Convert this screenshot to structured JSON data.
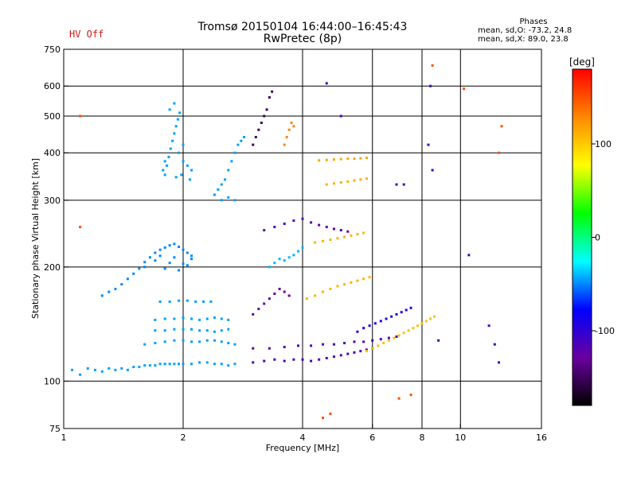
{
  "status": {
    "hv": "HV Off"
  },
  "phases_box": {
    "header": "Phases",
    "o_line": "mean, sd,O: -73.2, 24.8",
    "x_line": "mean, sd,X: 89.0, 23.8"
  },
  "chart_data": {
    "type": "scatter",
    "title": "Tromsø 20150104 16:44:00–16:45:43",
    "subtitle": "RwPretec (8p)",
    "xlabel": "Frequency [MHz]",
    "ylabel": "Stationary phase Virtual Height [km]",
    "x_scale": "log",
    "y_scale": "log",
    "xlim": [
      1,
      16
    ],
    "ylim": [
      75,
      750
    ],
    "x_ticks": [
      1,
      2,
      4,
      6,
      8,
      10,
      16
    ],
    "x_tick_labels": [
      "1",
      "2",
      "4",
      "6",
      "8",
      "10",
      "16"
    ],
    "y_ticks": [
      75,
      100,
      200,
      300,
      400,
      500,
      600,
      750
    ],
    "y_tick_labels": [
      "75",
      "100",
      "200",
      "300",
      "400",
      "500",
      "600",
      "750"
    ],
    "grid_x": [
      2,
      4,
      6,
      8,
      10
    ],
    "grid_y": [
      100,
      200,
      300,
      400,
      500,
      600
    ],
    "grid": true,
    "colorbar": {
      "label": "[deg]",
      "range": [
        -180,
        180
      ],
      "ticks": [
        100,
        0,
        -100
      ],
      "tick_labels": [
        "100",
        "0",
        "-100"
      ],
      "colors": [
        "#ff0000",
        "#ff8800",
        "#ffff00",
        "#00ff00",
        "#00ffff",
        "#0000ff",
        "#6a00a0",
        "#000000"
      ]
    },
    "series": [
      {
        "phase": -45,
        "points": [
          [
            1.05,
            107
          ],
          [
            1.1,
            104
          ],
          [
            1.15,
            108
          ],
          [
            1.2,
            107
          ],
          [
            1.25,
            106
          ],
          [
            1.3,
            108
          ],
          [
            1.35,
            107
          ],
          [
            1.4,
            108
          ],
          [
            1.45,
            107
          ],
          [
            1.5,
            109
          ],
          [
            1.55,
            109
          ],
          [
            1.6,
            110
          ],
          [
            1.65,
            110
          ],
          [
            1.7,
            110
          ],
          [
            1.75,
            111
          ],
          [
            1.8,
            111
          ],
          [
            1.85,
            111
          ],
          [
            1.9,
            111
          ],
          [
            1.95,
            111
          ],
          [
            2.0,
            111
          ],
          [
            2.1,
            111
          ],
          [
            2.2,
            112
          ],
          [
            2.3,
            112
          ],
          [
            2.4,
            111
          ],
          [
            2.5,
            111
          ],
          [
            2.6,
            110
          ],
          [
            2.7,
            111
          ]
        ]
      },
      {
        "phase": -50,
        "points": [
          [
            1.25,
            168
          ],
          [
            1.3,
            172
          ],
          [
            1.35,
            175
          ],
          [
            1.4,
            180
          ],
          [
            1.45,
            186
          ],
          [
            1.5,
            192
          ],
          [
            1.55,
            198
          ],
          [
            1.6,
            206
          ],
          [
            1.65,
            212
          ],
          [
            1.7,
            218
          ],
          [
            1.75,
            222
          ],
          [
            1.8,
            225
          ],
          [
            1.85,
            228
          ],
          [
            1.9,
            230
          ],
          [
            1.95,
            226
          ],
          [
            2.0,
            222
          ],
          [
            2.05,
            218
          ],
          [
            2.1,
            214
          ]
        ]
      },
      {
        "phase": -50,
        "points": [
          [
            1.6,
            200
          ],
          [
            1.7,
            208
          ],
          [
            1.8,
            198
          ],
          [
            1.9,
            212
          ],
          [
            2.0,
            204
          ],
          [
            2.1,
            210
          ],
          [
            1.75,
            214
          ],
          [
            1.85,
            205
          ],
          [
            1.95,
            196
          ],
          [
            2.05,
            202
          ]
        ]
      },
      {
        "phase": -45,
        "points": [
          [
            1.75,
            162
          ],
          [
            1.85,
            162
          ],
          [
            1.95,
            163
          ],
          [
            2.05,
            163
          ],
          [
            2.15,
            162
          ],
          [
            2.25,
            162
          ],
          [
            2.35,
            162
          ]
        ]
      },
      {
        "phase": -45,
        "points": [
          [
            1.7,
            145
          ],
          [
            1.8,
            146
          ],
          [
            1.9,
            146
          ],
          [
            2.0,
            147
          ],
          [
            2.1,
            146
          ],
          [
            2.2,
            145
          ],
          [
            2.3,
            146
          ],
          [
            2.4,
            147
          ],
          [
            2.5,
            146
          ],
          [
            2.6,
            145
          ]
        ]
      },
      {
        "phase": -45,
        "points": [
          [
            1.7,
            136
          ],
          [
            1.8,
            136
          ],
          [
            1.9,
            137
          ],
          [
            2.0,
            137
          ],
          [
            2.1,
            137
          ],
          [
            2.2,
            136
          ],
          [
            2.3,
            136
          ],
          [
            2.4,
            135
          ],
          [
            2.5,
            136
          ],
          [
            2.6,
            137
          ]
        ]
      },
      {
        "phase": -45,
        "points": [
          [
            1.6,
            125
          ],
          [
            1.7,
            126
          ],
          [
            1.8,
            127
          ],
          [
            1.9,
            128
          ],
          [
            2.0,
            128
          ],
          [
            2.1,
            127
          ],
          [
            2.2,
            127
          ],
          [
            2.3,
            128
          ],
          [
            2.4,
            128
          ],
          [
            2.5,
            127
          ],
          [
            2.6,
            126
          ],
          [
            2.7,
            125
          ]
        ]
      },
      {
        "phase": -45,
        "points": [
          [
            1.8,
            350
          ],
          [
            1.82,
            370
          ],
          [
            1.84,
            390
          ],
          [
            1.86,
            410
          ],
          [
            1.88,
            430
          ],
          [
            1.9,
            450
          ],
          [
            1.92,
            470
          ],
          [
            1.94,
            490
          ],
          [
            1.96,
            510
          ],
          [
            1.85,
            520
          ],
          [
            1.9,
            540
          ],
          [
            1.8,
            380
          ],
          [
            1.78,
            360
          ],
          [
            2.0,
            380
          ],
          [
            2.05,
            370
          ],
          [
            2.1,
            360
          ],
          [
            1.95,
            400
          ],
          [
            2.0,
            420
          ],
          [
            1.98,
            350
          ],
          [
            2.08,
            340
          ],
          [
            1.92,
            345
          ]
        ]
      },
      {
        "phase": -45,
        "points": [
          [
            2.4,
            310
          ],
          [
            2.45,
            320
          ],
          [
            2.5,
            330
          ],
          [
            2.55,
            340
          ],
          [
            2.6,
            360
          ],
          [
            2.65,
            380
          ],
          [
            2.7,
            400
          ],
          [
            2.75,
            420
          ],
          [
            2.8,
            430
          ],
          [
            2.85,
            440
          ],
          [
            2.5,
            300
          ],
          [
            2.6,
            305
          ],
          [
            2.7,
            300
          ]
        ]
      },
      {
        "phase": -115,
        "points": [
          [
            3.0,
            112
          ],
          [
            3.2,
            113
          ],
          [
            3.4,
            114
          ],
          [
            3.6,
            113
          ],
          [
            3.8,
            114
          ],
          [
            4.0,
            114
          ],
          [
            4.2,
            113
          ],
          [
            4.4,
            114
          ],
          [
            4.6,
            115
          ],
          [
            4.8,
            116
          ],
          [
            5.0,
            117
          ],
          [
            5.2,
            118
          ],
          [
            5.4,
            119
          ],
          [
            5.6,
            120
          ],
          [
            5.8,
            121
          ],
          [
            6.0,
            122
          ]
        ]
      },
      {
        "phase": -115,
        "points": [
          [
            3.0,
            122
          ],
          [
            3.3,
            122
          ],
          [
            3.6,
            123
          ],
          [
            3.9,
            124
          ],
          [
            4.2,
            124
          ],
          [
            4.5,
            125
          ],
          [
            4.8,
            125
          ],
          [
            5.1,
            126
          ],
          [
            5.4,
            127
          ],
          [
            5.7,
            127
          ],
          [
            6.0,
            128
          ],
          [
            6.3,
            129
          ],
          [
            6.6,
            130
          ],
          [
            6.9,
            131
          ]
        ]
      },
      {
        "phase": -120,
        "points": [
          [
            3.2,
            250
          ],
          [
            3.4,
            255
          ],
          [
            3.6,
            260
          ],
          [
            3.8,
            265
          ],
          [
            4.0,
            268
          ],
          [
            4.2,
            262
          ],
          [
            4.4,
            258
          ],
          [
            4.6,
            255
          ],
          [
            4.8,
            252
          ],
          [
            5.0,
            250
          ],
          [
            5.2,
            248
          ]
        ]
      },
      {
        "phase": -150,
        "points": [
          [
            3.0,
            420
          ],
          [
            3.05,
            440
          ],
          [
            3.1,
            460
          ],
          [
            3.15,
            480
          ],
          [
            3.2,
            500
          ],
          [
            3.25,
            520
          ],
          [
            3.3,
            560
          ],
          [
            3.35,
            580
          ]
        ]
      },
      {
        "phase": -130,
        "points": [
          [
            3.0,
            150
          ],
          [
            3.1,
            155
          ],
          [
            3.2,
            160
          ],
          [
            3.3,
            165
          ],
          [
            3.4,
            170
          ],
          [
            3.5,
            175
          ],
          [
            3.6,
            172
          ],
          [
            3.7,
            168
          ]
        ]
      },
      {
        "phase": -90,
        "points": [
          [
            5.5,
            135
          ],
          [
            5.7,
            138
          ],
          [
            5.9,
            140
          ],
          [
            6.1,
            142
          ],
          [
            6.3,
            144
          ],
          [
            6.5,
            146
          ],
          [
            6.7,
            148
          ],
          [
            6.9,
            150
          ],
          [
            7.1,
            152
          ],
          [
            7.3,
            154
          ],
          [
            7.5,
            156
          ]
        ]
      },
      {
        "phase": 110,
        "points": [
          [
            4.1,
            165
          ],
          [
            4.3,
            168
          ],
          [
            4.5,
            172
          ],
          [
            4.7,
            175
          ],
          [
            4.9,
            178
          ],
          [
            5.1,
            180
          ],
          [
            5.3,
            182
          ],
          [
            5.5,
            184
          ],
          [
            5.7,
            186
          ],
          [
            5.9,
            188
          ]
        ]
      },
      {
        "phase": 105,
        "points": [
          [
            5.8,
            120
          ],
          [
            6.0,
            122
          ],
          [
            6.2,
            124
          ],
          [
            6.4,
            126
          ],
          [
            6.6,
            128
          ],
          [
            6.8,
            130
          ],
          [
            7.0,
            132
          ],
          [
            7.2,
            134
          ],
          [
            7.4,
            136
          ],
          [
            7.6,
            138
          ],
          [
            7.8,
            140
          ],
          [
            8.0,
            142
          ],
          [
            8.2,
            144
          ],
          [
            8.4,
            146
          ],
          [
            8.6,
            148
          ]
        ]
      },
      {
        "phase": 110,
        "points": [
          [
            4.3,
            232
          ],
          [
            4.5,
            234
          ],
          [
            4.7,
            236
          ],
          [
            4.9,
            238
          ],
          [
            5.1,
            240
          ],
          [
            5.3,
            242
          ],
          [
            5.5,
            244
          ],
          [
            5.7,
            246
          ]
        ]
      },
      {
        "phase": 115,
        "points": [
          [
            4.4,
            382
          ],
          [
            4.6,
            383
          ],
          [
            4.8,
            384
          ],
          [
            5.0,
            385
          ],
          [
            5.2,
            386
          ],
          [
            5.4,
            386
          ],
          [
            5.6,
            387
          ],
          [
            5.8,
            388
          ]
        ]
      },
      {
        "phase": 112,
        "points": [
          [
            4.6,
            330
          ],
          [
            4.8,
            332
          ],
          [
            5.0,
            334
          ],
          [
            5.2,
            336
          ],
          [
            5.4,
            338
          ],
          [
            5.6,
            340
          ],
          [
            5.8,
            342
          ]
        ]
      },
      {
        "phase": 130,
        "points": [
          [
            3.6,
            420
          ],
          [
            3.65,
            440
          ],
          [
            3.7,
            460
          ],
          [
            3.75,
            480
          ],
          [
            3.8,
            470
          ]
        ]
      },
      {
        "phase": -40,
        "points": [
          [
            3.3,
            200
          ],
          [
            3.4,
            205
          ],
          [
            3.5,
            210
          ],
          [
            3.6,
            208
          ],
          [
            3.7,
            212
          ],
          [
            3.8,
            215
          ],
          [
            3.9,
            220
          ],
          [
            4.0,
            225
          ]
        ]
      },
      {
        "phase": 150,
        "points": [
          [
            1.1,
            255
          ],
          [
            1.1,
            500
          ],
          [
            4.5,
            80
          ],
          [
            4.7,
            82
          ],
          [
            7.0,
            90
          ],
          [
            7.5,
            92
          ],
          [
            8.5,
            680
          ],
          [
            10.2,
            590
          ],
          [
            12.7,
            470
          ],
          [
            12.5,
            400
          ]
        ]
      },
      {
        "phase": -110,
        "points": [
          [
            4.6,
            610
          ],
          [
            5.0,
            500
          ],
          [
            8.4,
            600
          ],
          [
            8.3,
            420
          ],
          [
            6.9,
            330
          ],
          [
            7.2,
            330
          ],
          [
            8.5,
            360
          ],
          [
            10.5,
            215
          ],
          [
            12.2,
            125
          ],
          [
            11.8,
            140
          ],
          [
            12.5,
            112
          ],
          [
            8.8,
            128
          ]
        ]
      }
    ]
  }
}
